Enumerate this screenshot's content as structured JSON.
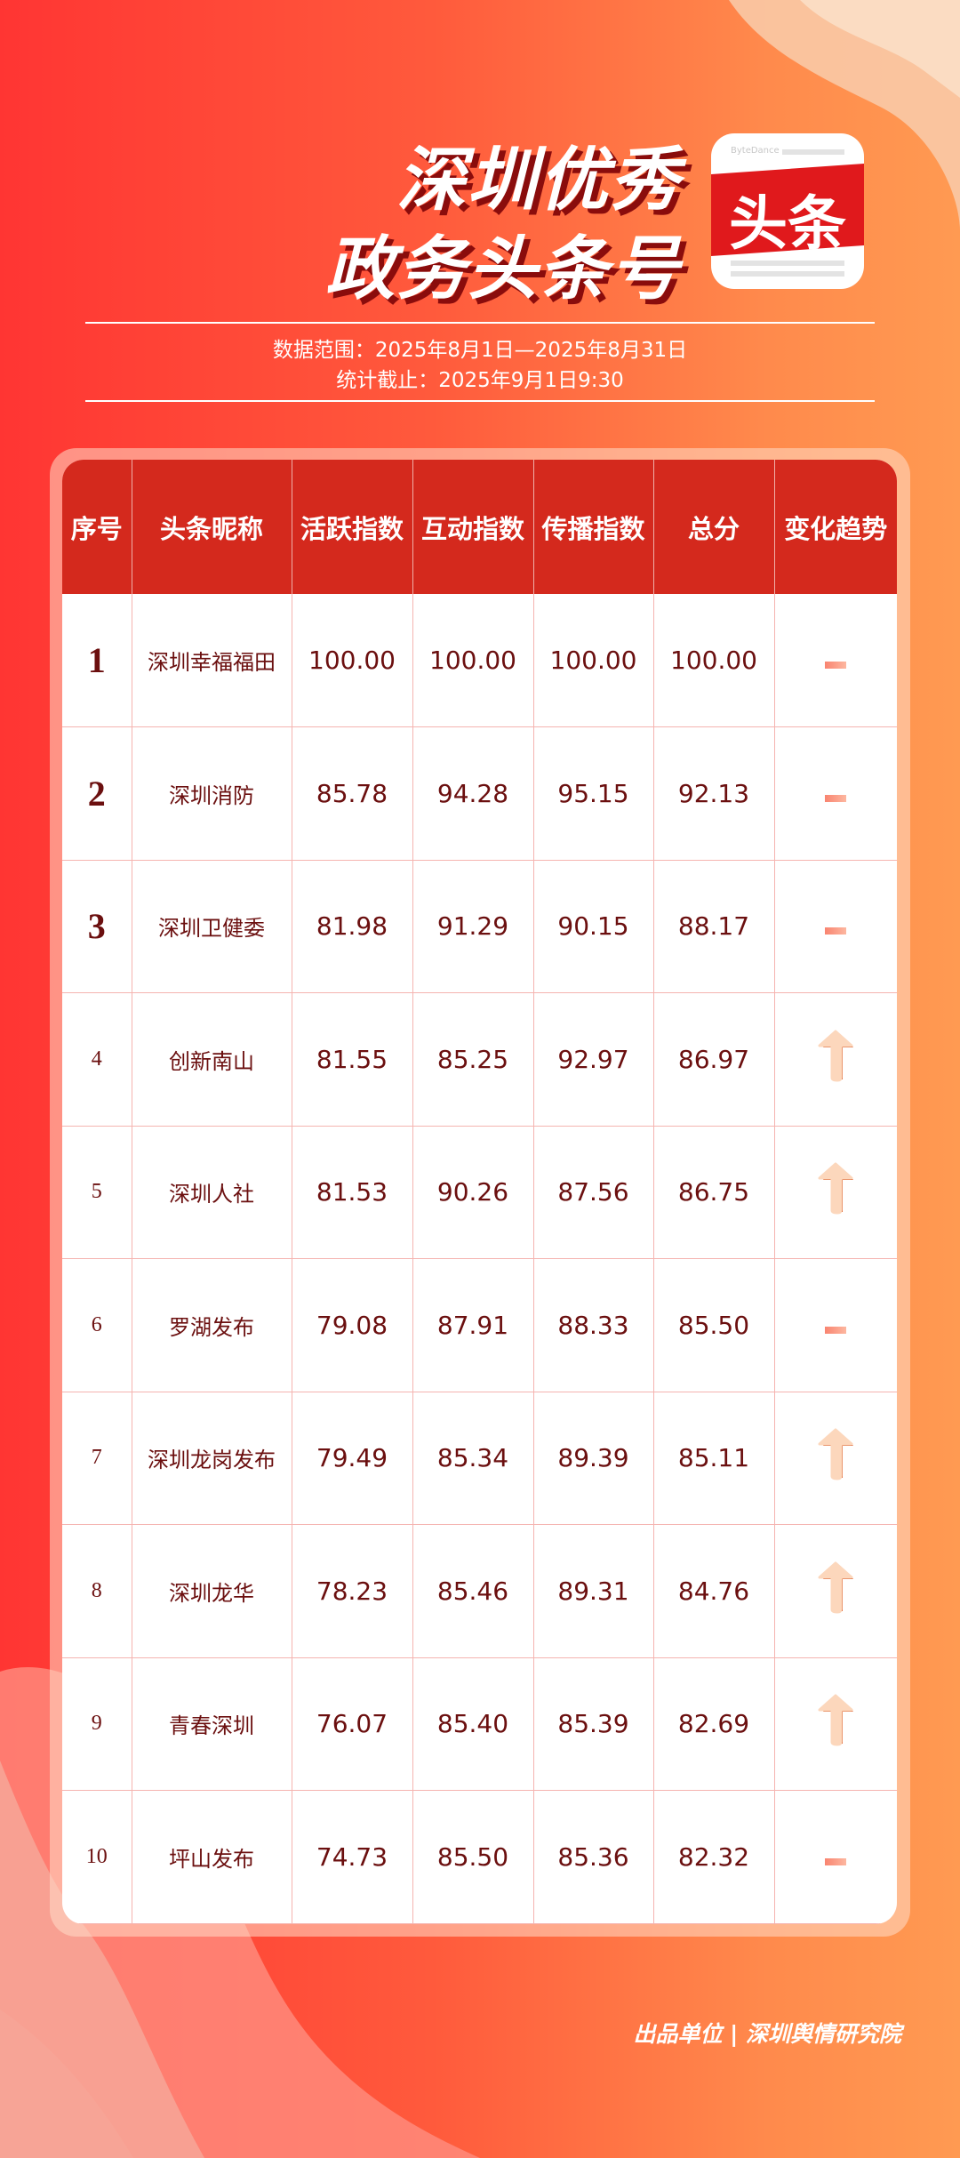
{
  "header": {
    "title_line1": "深圳优秀",
    "title_line2": "政务头条号",
    "logo_text": "头条",
    "logo_brand": "ByteDance",
    "data_range": "数据范围：2025年8月1日—2025年8月31日",
    "cutoff": "统计截止：2025年9月1日9:30"
  },
  "table": {
    "columns": [
      "序号",
      "头条昵称",
      "活跃指数",
      "互动指数",
      "传播指数",
      "总分",
      "变化趋势"
    ],
    "rows": [
      {
        "rank": "1",
        "name": "深圳幸福福田",
        "active": "100.00",
        "interact": "100.00",
        "spread": "100.00",
        "total": "100.00",
        "trend": "flat"
      },
      {
        "rank": "2",
        "name": "深圳消防",
        "active": "85.78",
        "interact": "94.28",
        "spread": "95.15",
        "total": "92.13",
        "trend": "flat"
      },
      {
        "rank": "3",
        "name": "深圳卫健委",
        "active": "81.98",
        "interact": "91.29",
        "spread": "90.15",
        "total": "88.17",
        "trend": "flat"
      },
      {
        "rank": "4",
        "name": "创新南山",
        "active": "81.55",
        "interact": "85.25",
        "spread": "92.97",
        "total": "86.97",
        "trend": "up"
      },
      {
        "rank": "5",
        "name": "深圳人社",
        "active": "81.53",
        "interact": "90.26",
        "spread": "87.56",
        "total": "86.75",
        "trend": "up"
      },
      {
        "rank": "6",
        "name": "罗湖发布",
        "active": "79.08",
        "interact": "87.91",
        "spread": "88.33",
        "total": "85.50",
        "trend": "flat"
      },
      {
        "rank": "7",
        "name": "深圳龙岗发布",
        "active": "79.49",
        "interact": "85.34",
        "spread": "89.39",
        "total": "85.11",
        "trend": "up"
      },
      {
        "rank": "8",
        "name": "深圳龙华",
        "active": "78.23",
        "interact": "85.46",
        "spread": "89.31",
        "total": "84.76",
        "trend": "up"
      },
      {
        "rank": "9",
        "name": "青春深圳",
        "active": "76.07",
        "interact": "85.40",
        "spread": "85.39",
        "total": "82.69",
        "trend": "up"
      },
      {
        "rank": "10",
        "name": "坪山发布",
        "active": "74.73",
        "interact": "85.50",
        "spread": "85.36",
        "total": "82.32",
        "trend": "flat"
      }
    ]
  },
  "footer": {
    "text": "出品单位 | 深圳舆情研究院"
  },
  "colors": {
    "header_bg": "#d4291d",
    "text": "#6b0f0f",
    "bg_left": "#ff3533",
    "bg_right": "#ff9a52"
  }
}
